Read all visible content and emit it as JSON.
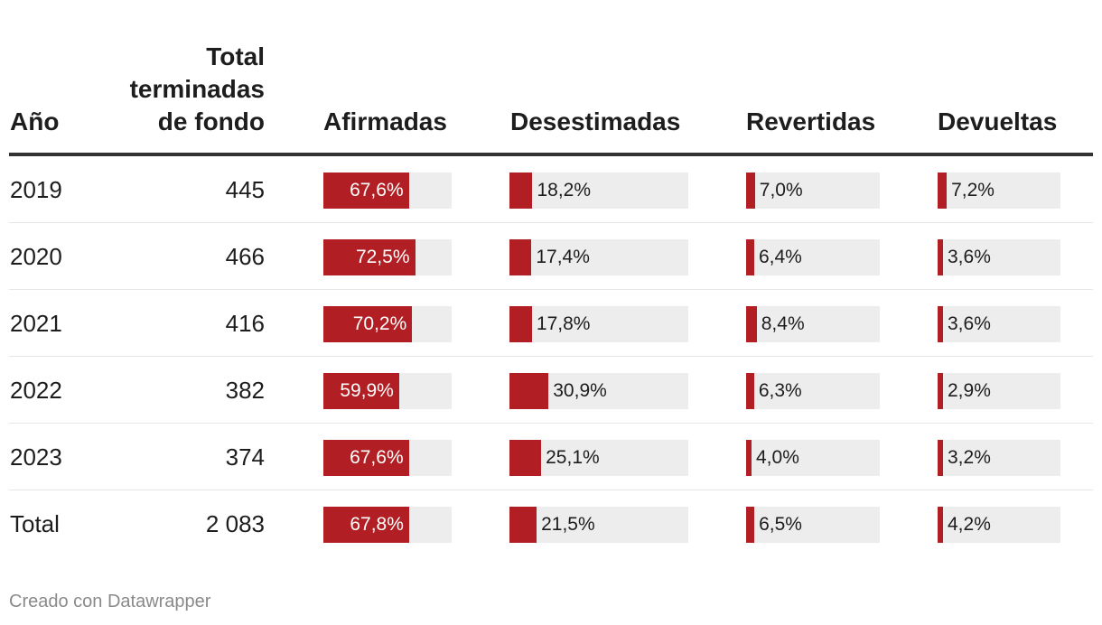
{
  "chart_data": {
    "type": "table",
    "columns": {
      "year": "Año",
      "total_lines": [
        "Total",
        "terminadas",
        "de fondo"
      ],
      "metrics": [
        "Afirmadas",
        "Desestimadas",
        "Revertidas",
        "Devueltas"
      ]
    },
    "bar_color": "#b11f24",
    "track_color": "#ededed",
    "rows": [
      {
        "year": "2019",
        "total": "445",
        "values": [
          67.6,
          18.2,
          7.0,
          7.2
        ],
        "labels": [
          "67,6%",
          "18,2%",
          "7,0%",
          "7,2%"
        ]
      },
      {
        "year": "2020",
        "total": "466",
        "values": [
          72.5,
          17.4,
          6.4,
          3.6
        ],
        "labels": [
          "72,5%",
          "17,4%",
          "6,4%",
          "3,6%"
        ]
      },
      {
        "year": "2021",
        "total": "416",
        "values": [
          70.2,
          17.8,
          8.4,
          3.6
        ],
        "labels": [
          "70,2%",
          "17,8%",
          "8,4%",
          "3,6%"
        ]
      },
      {
        "year": "2022",
        "total": "382",
        "values": [
          59.9,
          30.9,
          6.3,
          2.9
        ],
        "labels": [
          "59,9%",
          "30,9%",
          "6,3%",
          "2,9%"
        ]
      },
      {
        "year": "2023",
        "total": "374",
        "values": [
          67.6,
          25.1,
          4.0,
          3.2
        ],
        "labels": [
          "67,6%",
          "25,1%",
          "4,0%",
          "3,2%"
        ]
      },
      {
        "year": "Total",
        "total": "2 083",
        "values": [
          67.8,
          21.5,
          6.5,
          4.2
        ],
        "labels": [
          "67,8%",
          "21,5%",
          "6,5%",
          "4,2%"
        ]
      }
    ]
  },
  "footer": "Creado con Datawrapper"
}
